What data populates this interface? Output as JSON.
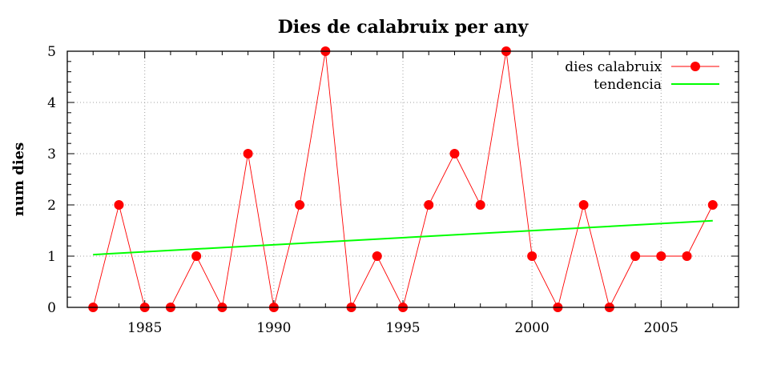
{
  "chart_data": {
    "type": "line",
    "title": "Dies de calabruix per any",
    "xlabel": "",
    "ylabel": "num dies",
    "xlim": [
      1982,
      2008
    ],
    "ylim": [
      0,
      5
    ],
    "xticks": [
      1985,
      1990,
      1995,
      2000,
      2005
    ],
    "yticks": [
      0,
      1,
      2,
      3,
      4,
      5
    ],
    "grid": true,
    "legend_position": "top-right",
    "series": [
      {
        "name": "dies calabruix",
        "color": "#ff0000",
        "marker": "circle",
        "x": [
          1983,
          1984,
          1985,
          1986,
          1987,
          1988,
          1989,
          1990,
          1991,
          1992,
          1993,
          1994,
          1995,
          1996,
          1997,
          1998,
          1999,
          2000,
          2001,
          2002,
          2003,
          2004,
          2005,
          2006,
          2007
        ],
        "y": [
          0,
          2,
          0,
          0,
          1,
          0,
          3,
          0,
          2,
          5,
          0,
          1,
          0,
          2,
          3,
          2,
          5,
          1,
          0,
          2,
          0,
          1,
          1,
          1,
          2
        ]
      },
      {
        "name": "tendencia",
        "color": "#00ff00",
        "marker": "none",
        "x": [
          1983,
          2007
        ],
        "y": [
          1.03,
          1.69
        ]
      }
    ]
  }
}
